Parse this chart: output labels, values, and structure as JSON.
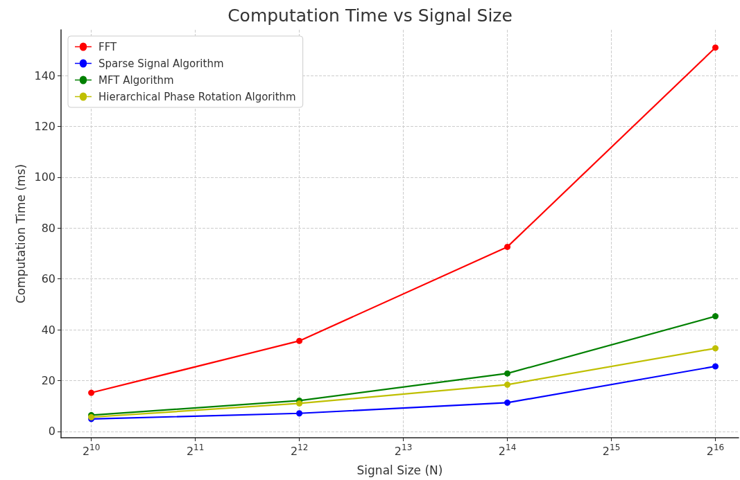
{
  "chart_data": {
    "type": "line",
    "title": "Computation Time vs Signal Size",
    "xlabel": "Signal Size (N)",
    "ylabel": "Computation Time (ms)",
    "x": [
      1024,
      4096,
      16384,
      65536
    ],
    "series": [
      {
        "name": "FFT",
        "color": "#ff0000",
        "values": [
          15.2,
          35.6,
          72.6,
          151
        ]
      },
      {
        "name": "Sparse Signal Algorithm",
        "color": "#0000ff",
        "values": [
          4.9,
          7.1,
          11.3,
          25.6
        ]
      },
      {
        "name": "MFT Algorithm",
        "color": "#008000",
        "values": [
          6.4,
          12.1,
          22.8,
          45.3
        ]
      },
      {
        "name": "Hierarchical Phase Rotation Algorithm",
        "color": "#bfbf00",
        "values": [
          5.6,
          11,
          18.4,
          32.7
        ]
      }
    ],
    "log": "x",
    "xlim": [
      837,
      76500
    ],
    "xticks": [
      {
        "value": 1024,
        "label": "2$^{10}$"
      },
      {
        "value": 2048,
        "label": "2$^{11}$"
      },
      {
        "value": 4096,
        "label": "2$^{12}$"
      },
      {
        "value": 8192,
        "label": "2$^{13}$"
      },
      {
        "value": 16384,
        "label": "2$^{14}$"
      },
      {
        "value": 32768,
        "label": "2$^{15}$"
      },
      {
        "value": 65536,
        "label": "2$^{16}$"
      }
    ],
    "ylim": [
      -2.5,
      158
    ],
    "yticks": [
      0,
      20,
      40,
      60,
      80,
      100,
      120,
      140
    ],
    "grid": true,
    "legend": "top left",
    "marker": "circle",
    "line_style": "solid"
  }
}
